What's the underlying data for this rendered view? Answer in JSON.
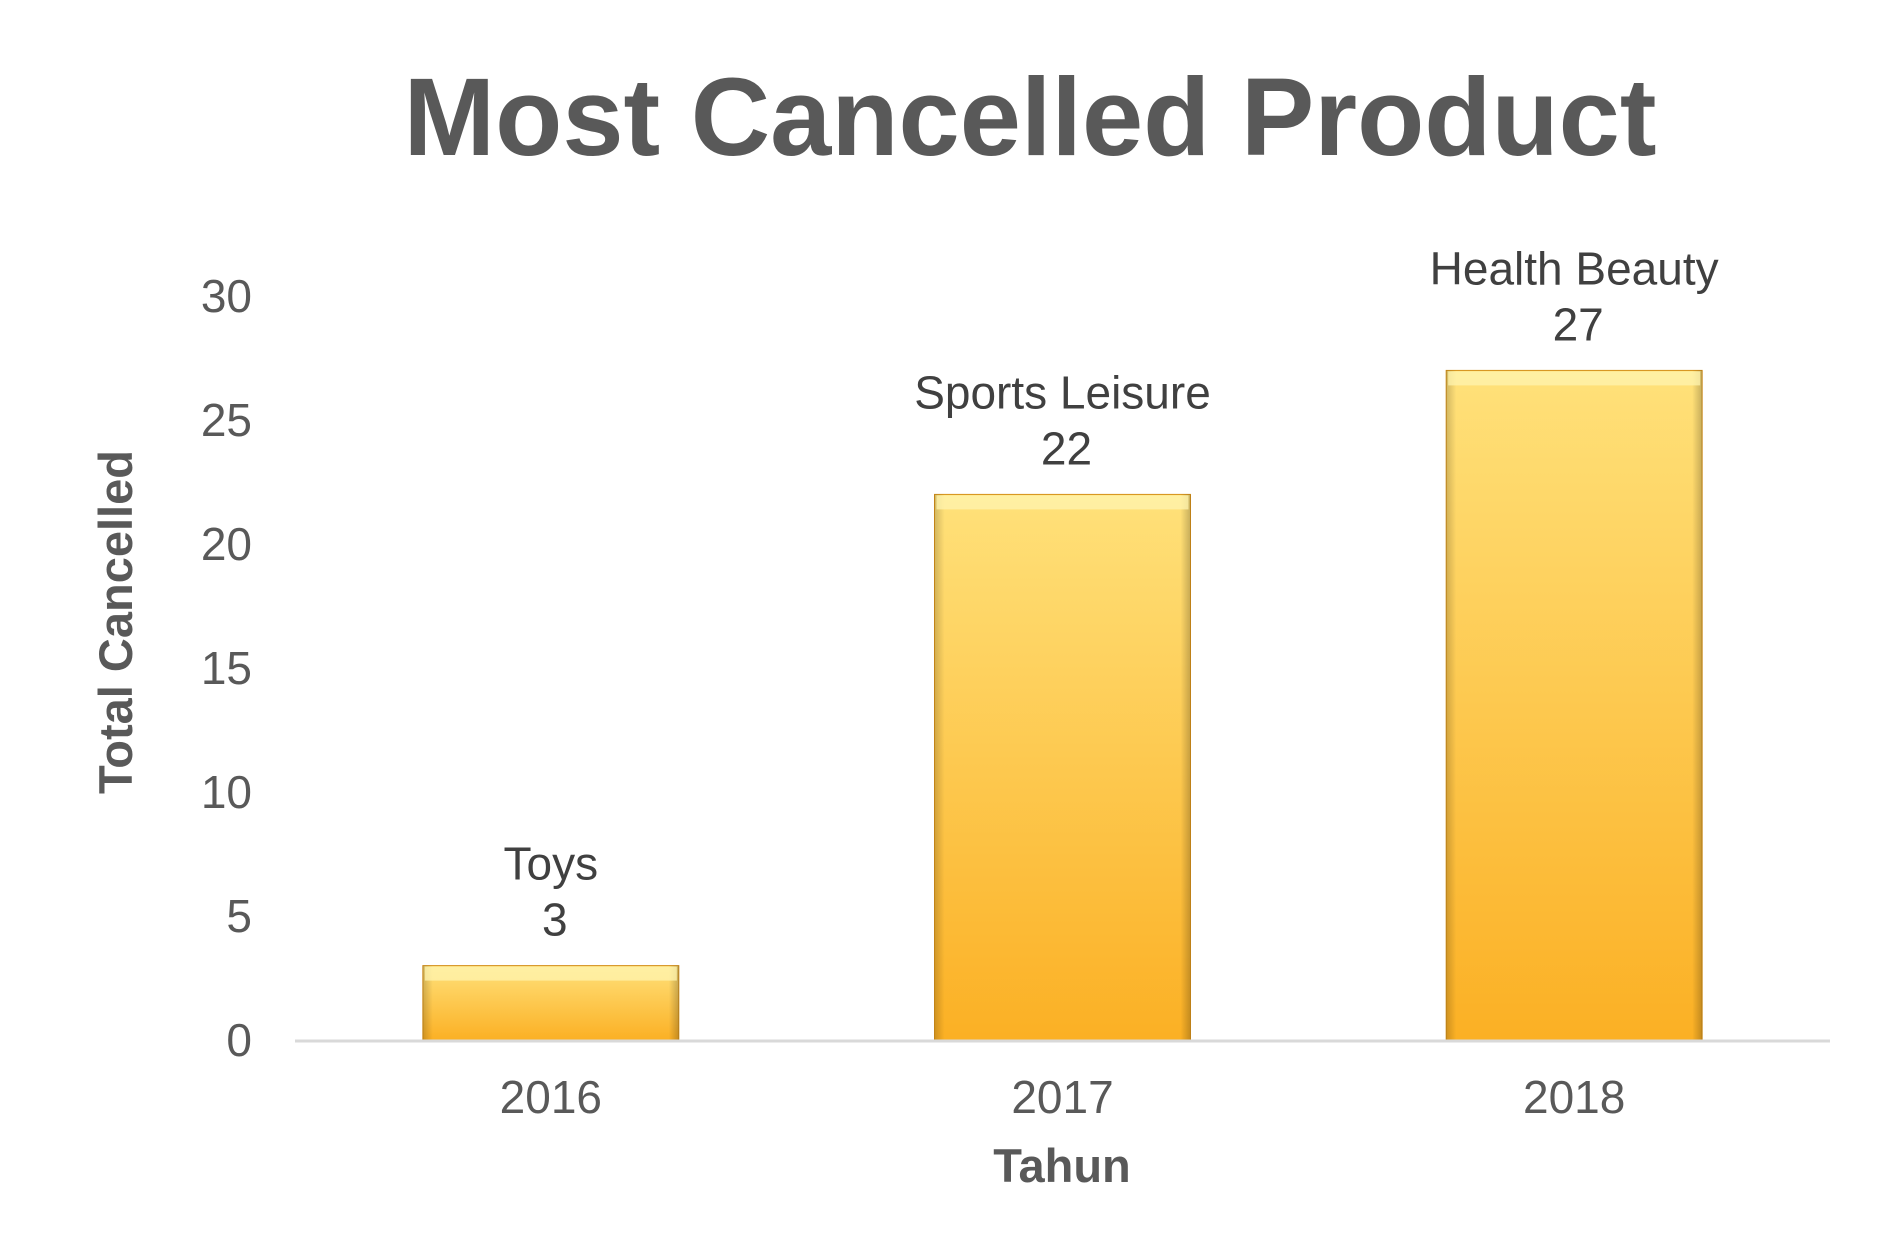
{
  "chart_data": {
    "type": "bar",
    "title": "Most Cancelled Product",
    "xlabel": "Tahun",
    "ylabel": "Total Cancelled",
    "categories": [
      "2016",
      "2017",
      "2018"
    ],
    "values": [
      3,
      22,
      27
    ],
    "data_labels": [
      "Toys",
      "Sports Leisure",
      "Health Beauty"
    ],
    "ylim": [
      0,
      30
    ],
    "yticks": [
      0,
      5,
      10,
      15,
      20,
      25,
      30
    ],
    "grid": false,
    "legend": "none",
    "colors": {
      "bar_light": "#FFE17A",
      "bar_dark": "#FBB024",
      "bar_edge": "#D4901A",
      "text": "#595959",
      "axis": "#D9D9D9"
    }
  }
}
